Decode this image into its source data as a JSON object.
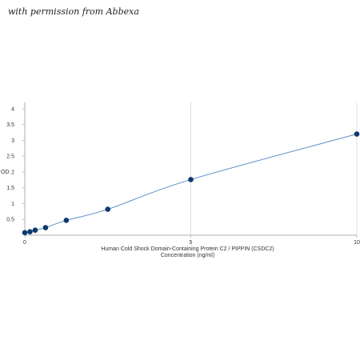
{
  "watermark": "with permission from Abbexa",
  "colors": {
    "line": "#5b8fc7",
    "point": "#0d3a6e",
    "grid": "#d9d9d9",
    "axis": "#b0b0b0"
  },
  "chart_data": {
    "type": "line",
    "title": "",
    "xlabel_line1": "Human Cold Shock Domain-Containing Protein C2 / PIPPIN (CSDC2)",
    "xlabel_line2": "Concentration (ng/ml)",
    "ylabel": "OD",
    "xlim": [
      0,
      10
    ],
    "ylim": [
      0,
      4.2
    ],
    "x_ticks": [
      0,
      5,
      10
    ],
    "y_ticks": [
      0.5,
      1,
      1.5,
      2,
      2.5,
      3,
      3.5,
      4
    ],
    "x_tick_labels": [
      "0",
      "5",
      "10"
    ],
    "y_tick_labels": [
      "0.5",
      "1",
      "1.5",
      "2",
      "2.5",
      "3",
      "3.5",
      "4"
    ],
    "grid": true,
    "series": [
      {
        "x": [
          0,
          0.156,
          0.312,
          0.625,
          1.25,
          2.5,
          5,
          10
        ],
        "y": [
          0.08,
          0.11,
          0.16,
          0.24,
          0.47,
          0.82,
          1.76,
          3.2
        ]
      }
    ]
  }
}
